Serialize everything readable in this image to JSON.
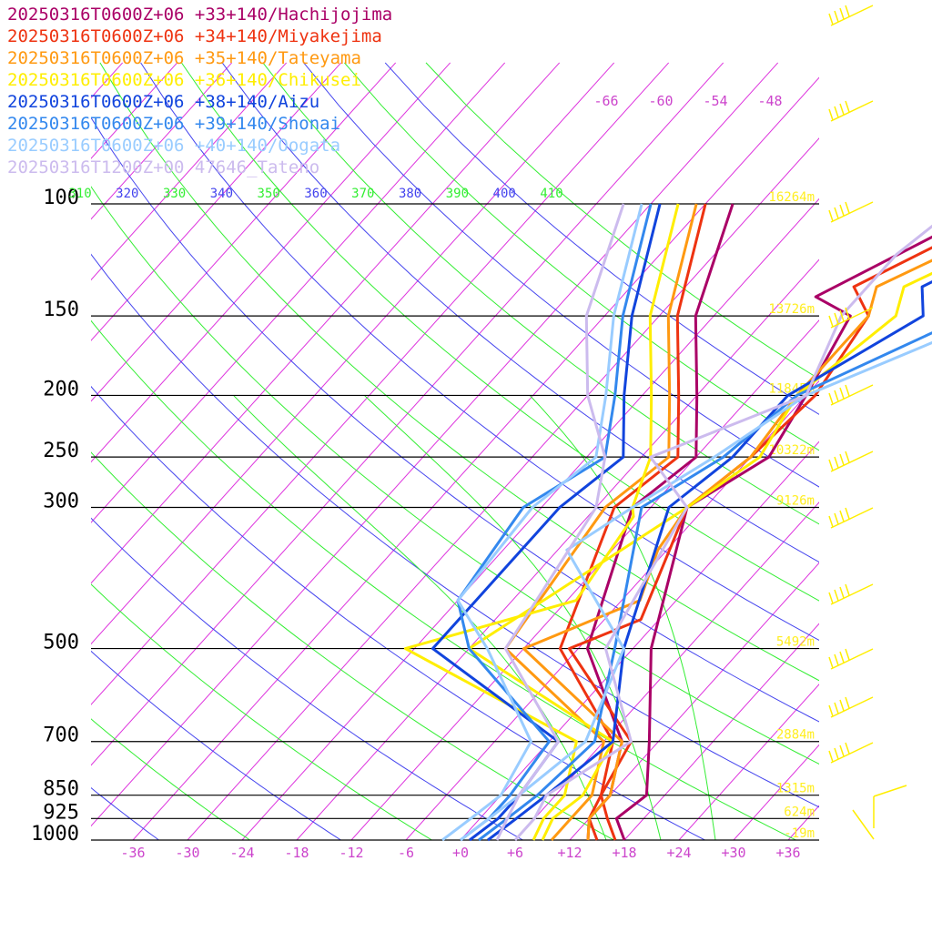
{
  "chart_data": {
    "type": "line",
    "title": "",
    "xlabel": "",
    "ylabel": "",
    "grid": true,
    "legend_placement": "top-left",
    "pressure_levels": [
      100,
      150,
      200,
      250,
      300,
      500,
      700,
      850,
      925,
      1000
    ],
    "pressure_labels": [
      "100",
      "150",
      "200",
      "250",
      "300",
      "500",
      "700",
      "850",
      "925",
      "1000"
    ],
    "temperature_ticks": [
      -36,
      -30,
      -24,
      -18,
      -12,
      -6,
      0,
      6,
      12,
      18,
      24,
      30,
      36
    ],
    "temperature_labels": [
      "-36",
      "-30",
      "-24",
      "-18",
      "-12",
      "-6",
      "+0",
      "+6",
      "+12",
      "+18",
      "+24",
      "+30",
      "+36"
    ],
    "upper_isotherm_labels": [
      "-66",
      "-60",
      "-54",
      "-48"
    ],
    "theta_labels": [
      "310",
      "320",
      "330",
      "340",
      "350",
      "360",
      "370",
      "380",
      "390",
      "400",
      "410"
    ],
    "height_labels": [
      {
        "p": 100,
        "label": "16264m"
      },
      {
        "p": 150,
        "label": "13726m"
      },
      {
        "p": 200,
        "label": "11845m"
      },
      {
        "p": 250,
        "label": "10322m"
      },
      {
        "p": 300,
        "label": "9126m"
      },
      {
        "p": 500,
        "label": "5492m"
      },
      {
        "p": 700,
        "label": "2884m"
      },
      {
        "p": 850,
        "label": "1315m"
      },
      {
        "p": 925,
        "label": "624m"
      },
      {
        "p": 1000,
        "label": "-19m"
      }
    ],
    "series": [
      {
        "name": "20250316T0600Z+06 +33+140/Hachijojima",
        "color": "#aa0066",
        "temp": [
          [
            1000,
            18
          ],
          [
            925,
            15
          ],
          [
            850,
            16
          ],
          [
            700,
            11
          ],
          [
            500,
            2
          ],
          [
            300,
            -8
          ],
          [
            250,
            -4
          ],
          [
            200,
            -6
          ],
          [
            150,
            -9
          ],
          [
            140,
            -14.7
          ],
          [
            100,
            -4
          ],
          [
            70,
            13
          ],
          [
            60,
            29
          ]
        ],
        "dew": [
          [
            1000,
            14
          ],
          [
            925,
            12
          ],
          [
            850,
            12
          ],
          [
            700,
            8
          ],
          [
            500,
            -5
          ],
          [
            300,
            -14
          ],
          [
            250,
            -12
          ],
          [
            200,
            -18
          ],
          [
            150,
            -26
          ],
          [
            100,
            -33
          ]
        ]
      },
      {
        "name": "20250316T0600Z+06 +34+140/Miyakejima",
        "color": "#ee3311",
        "temp": [
          [
            1000,
            17
          ],
          [
            925,
            14
          ],
          [
            850,
            11
          ],
          [
            700,
            9
          ],
          [
            500,
            -7
          ],
          [
            450,
            -2
          ],
          [
            300,
            -8
          ],
          [
            250,
            -6
          ],
          [
            200,
            -5
          ],
          [
            150,
            -7
          ],
          [
            135,
            -11.5
          ],
          [
            100,
            -1.5
          ],
          [
            70,
            12
          ],
          [
            60,
            31
          ]
        ],
        "dew": [
          [
            1000,
            15
          ],
          [
            925,
            12
          ],
          [
            850,
            11
          ],
          [
            700,
            7
          ],
          [
            500,
            -8
          ],
          [
            300,
            -16
          ],
          [
            250,
            -14
          ],
          [
            200,
            -20
          ],
          [
            150,
            -28
          ],
          [
            100,
            -36
          ]
        ]
      },
      {
        "name": "20250316T0600Z+06 +35+140/Tateyama",
        "color": "#ff9911",
        "temp": [
          [
            1000,
            14
          ],
          [
            925,
            12
          ],
          [
            850,
            12
          ],
          [
            700,
            8
          ],
          [
            500,
            -12
          ],
          [
            420,
            -4
          ],
          [
            350,
            -7
          ],
          [
            300,
            -8
          ],
          [
            250,
            -6
          ],
          [
            200,
            -7
          ],
          [
            150,
            -7
          ],
          [
            135,
            -9
          ],
          [
            100,
            2
          ],
          [
            70,
            12
          ],
          [
            60,
            33
          ]
        ],
        "dew": [
          [
            1000,
            10
          ],
          [
            925,
            10
          ],
          [
            850,
            10
          ],
          [
            700,
            6
          ],
          [
            500,
            -14
          ],
          [
            300,
            -17
          ],
          [
            250,
            -15
          ],
          [
            200,
            -21
          ],
          [
            150,
            -29
          ],
          [
            100,
            -37
          ]
        ]
      },
      {
        "name": "20250316T0600Z+06 +36+140/Chikusei",
        "color": "#ffee00",
        "temp": [
          [
            1000,
            9
          ],
          [
            925,
            8
          ],
          [
            850,
            9
          ],
          [
            700,
            7
          ],
          [
            500,
            -18
          ],
          [
            300,
            -8
          ],
          [
            250,
            -5
          ],
          [
            200,
            -7
          ],
          [
            150,
            -4
          ],
          [
            135,
            -6
          ],
          [
            100,
            5
          ],
          [
            70,
            13
          ],
          [
            60,
            35
          ]
        ],
        "dew": [
          [
            1000,
            8
          ],
          [
            925,
            7
          ],
          [
            850,
            7
          ],
          [
            700,
            3
          ],
          [
            500,
            -25
          ],
          [
            420,
            -11
          ],
          [
            310,
            -13
          ],
          [
            300,
            -14
          ],
          [
            250,
            -17
          ],
          [
            200,
            -23
          ],
          [
            150,
            -31
          ],
          [
            100,
            -39
          ]
        ]
      },
      {
        "name": "20250316T0600Z+06 +38+140/Aizu",
        "color": "#1144dd",
        "temp": [
          [
            1000,
            3
          ],
          [
            925,
            4
          ],
          [
            850,
            5
          ],
          [
            700,
            7
          ],
          [
            500,
            -1
          ],
          [
            300,
            -10
          ],
          [
            250,
            -8
          ],
          [
            200,
            -8
          ],
          [
            150,
            -1
          ],
          [
            135,
            -4
          ],
          [
            100,
            6
          ],
          [
            70,
            14
          ],
          [
            60,
            37
          ]
        ],
        "dew": [
          [
            1000,
            1
          ],
          [
            925,
            2
          ],
          [
            850,
            2
          ],
          [
            700,
            1
          ],
          [
            500,
            -22
          ],
          [
            420,
            -22
          ],
          [
            300,
            -22
          ],
          [
            250,
            -20
          ],
          [
            200,
            -26
          ],
          [
            150,
            -33
          ],
          [
            100,
            -41
          ]
        ]
      },
      {
        "name": "20250316T0600Z+06 +39+140/Shonai",
        "color": "#3388ee",
        "temp": [
          [
            1000,
            2
          ],
          [
            925,
            3
          ],
          [
            850,
            4
          ],
          [
            700,
            5
          ],
          [
            500,
            -2
          ],
          [
            300,
            -13
          ],
          [
            250,
            -9
          ],
          [
            200,
            -7
          ],
          [
            150,
            4
          ],
          [
            120,
            3
          ],
          [
            100,
            7
          ],
          [
            70,
            15
          ],
          [
            60,
            38
          ]
        ],
        "dew": [
          [
            1000,
            0
          ],
          [
            925,
            1
          ],
          [
            850,
            1
          ],
          [
            700,
            0
          ],
          [
            500,
            -18
          ],
          [
            420,
            -24
          ],
          [
            300,
            -26
          ],
          [
            250,
            -22
          ],
          [
            200,
            -27
          ],
          [
            150,
            -34
          ],
          [
            100,
            -42
          ]
        ]
      },
      {
        "name": "20250316T0600Z+06 +40+140/Oogata",
        "color": "#99ccff",
        "temp": [
          [
            1000,
            0
          ],
          [
            925,
            1
          ],
          [
            850,
            2
          ],
          [
            700,
            4
          ],
          [
            500,
            -1
          ],
          [
            350,
            -17
          ],
          [
            300,
            -14
          ],
          [
            250,
            -10
          ],
          [
            200,
            -6
          ],
          [
            150,
            7
          ],
          [
            120,
            5
          ],
          [
            100,
            8
          ],
          [
            70,
            16
          ],
          [
            60,
            39
          ]
        ],
        "dew": [
          [
            1000,
            -2
          ],
          [
            925,
            -1
          ],
          [
            850,
            0
          ],
          [
            700,
            -2
          ],
          [
            500,
            -16
          ],
          [
            420,
            -24
          ],
          [
            300,
            -25
          ],
          [
            250,
            -23
          ],
          [
            200,
            -28
          ],
          [
            150,
            -35
          ],
          [
            100,
            -43
          ]
        ]
      },
      {
        "name": "20250316T1200Z+00 47646_Tateno",
        "color": "#ccbbee",
        "temp": [
          [
            1000,
            6
          ],
          [
            925,
            6
          ],
          [
            850,
            5
          ],
          [
            700,
            9
          ],
          [
            500,
            -3
          ],
          [
            300,
            -8
          ],
          [
            250,
            -17
          ],
          [
            200,
            -6
          ],
          [
            150,
            -10
          ],
          [
            120,
            -10
          ],
          [
            100,
            -8
          ]
        ],
        "dew": [
          [
            1000,
            4
          ],
          [
            925,
            3
          ],
          [
            850,
            2
          ],
          [
            700,
            1
          ],
          [
            500,
            -14
          ],
          [
            300,
            -18
          ],
          [
            250,
            -22
          ],
          [
            200,
            -30
          ],
          [
            150,
            -38
          ],
          [
            100,
            -45
          ]
        ]
      }
    ]
  }
}
